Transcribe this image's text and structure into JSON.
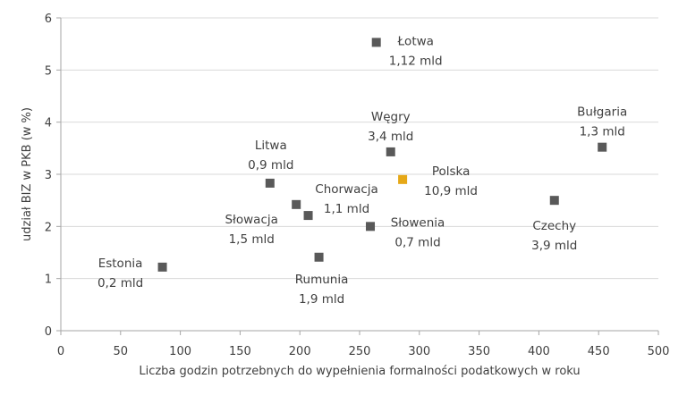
{
  "chart_data": {
    "type": "scatter",
    "title": "",
    "xlabel": "Liczba godzin potrzebnych do wypełnienia formalności podatkowych w roku",
    "ylabel": "udział BIZ w PKB (w %)",
    "xlim": [
      0,
      500
    ],
    "ylim": [
      0,
      6
    ],
    "xticks": [
      0,
      50,
      100,
      150,
      200,
      250,
      300,
      350,
      400,
      450,
      500
    ],
    "yticks": [
      0,
      1,
      2,
      3,
      4,
      5,
      6
    ],
    "grid": "horizontal",
    "legend": "none",
    "colors": {
      "default": "#595959",
      "highlight": "#E6A817",
      "grid": "#D9D9D9",
      "axis": "#A6A6A6"
    },
    "points": [
      {
        "name": "Łotwa",
        "value_label": "1,12 mld",
        "x": 264,
        "y": 5.53,
        "highlight": false
      },
      {
        "name": "Węgry",
        "value_label": "3,4 mld",
        "x": 276,
        "y": 3.43,
        "highlight": false
      },
      {
        "name": "Bułgaria",
        "value_label": "1,3 mld",
        "x": 453,
        "y": 3.52,
        "highlight": false
      },
      {
        "name": "Polska",
        "value_label": "10,9 mld",
        "x": 286,
        "y": 2.9,
        "highlight": true
      },
      {
        "name": "Czechy",
        "value_label": "3,9 mld",
        "x": 413,
        "y": 2.5,
        "highlight": false
      },
      {
        "name": "Litwa",
        "value_label": "0,9 mld",
        "x": 175,
        "y": 2.83,
        "highlight": false
      },
      {
        "name": "Słowacja",
        "value_label": "1,5 mld",
        "x": 197,
        "y": 2.42,
        "highlight": false
      },
      {
        "name": "Chorwacja",
        "value_label": "1,1 mld",
        "x": 207,
        "y": 2.21,
        "highlight": false
      },
      {
        "name": "Słowenia",
        "value_label": "0,7 mld",
        "x": 259,
        "y": 2.0,
        "highlight": false
      },
      {
        "name": "Rumunia",
        "value_label": "1,9 mld",
        "x": 216,
        "y": 1.41,
        "highlight": false
      },
      {
        "name": "Estonia",
        "value_label": "0,2 mld",
        "x": 85,
        "y": 1.22,
        "highlight": false
      }
    ]
  }
}
